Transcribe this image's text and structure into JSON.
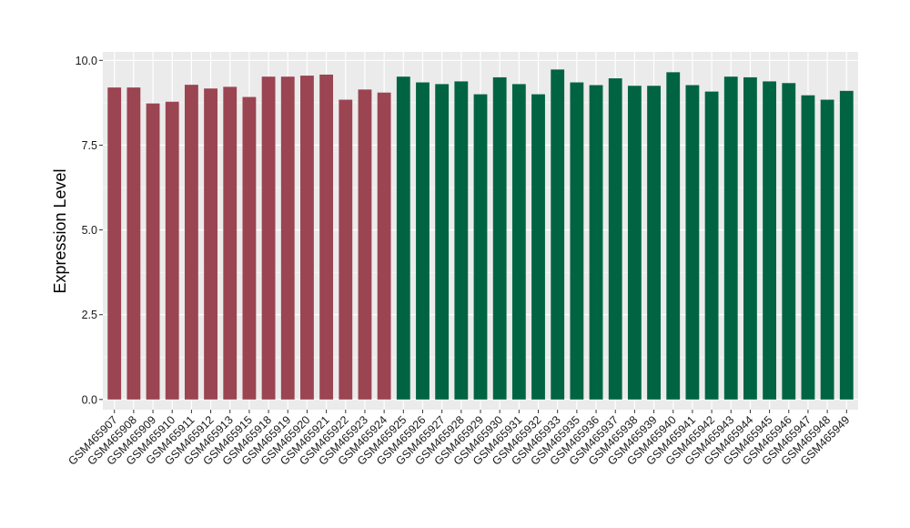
{
  "chart_data": {
    "type": "bar",
    "title": "",
    "xlabel": "",
    "ylabel": "Expression Level",
    "ylim": [
      -0.3,
      10.25
    ],
    "yticks": [
      0.0,
      2.5,
      5.0,
      7.5,
      10.0
    ],
    "ytick_labels": [
      "0.0",
      "2.5",
      "5.0",
      "7.5",
      "10.0"
    ],
    "grid": true,
    "legend": "none",
    "panel_background": "#ebebeb",
    "grid_color": "#ffffff",
    "categories": [
      "GSM465907",
      "GSM465908",
      "GSM465909",
      "GSM465910",
      "GSM465911",
      "GSM465912",
      "GSM465913",
      "GSM465915",
      "GSM465918",
      "GSM465919",
      "GSM465920",
      "GSM465921",
      "GSM465922",
      "GSM465923",
      "GSM465924",
      "GSM465925",
      "GSM465926",
      "GSM465927",
      "GSM465928",
      "GSM465929",
      "GSM465930",
      "GSM465931",
      "GSM465932",
      "GSM465933",
      "GSM465935",
      "GSM465936",
      "GSM465937",
      "GSM465938",
      "GSM465939",
      "GSM465940",
      "GSM465941",
      "GSM465942",
      "GSM465943",
      "GSM465944",
      "GSM465945",
      "GSM465946",
      "GSM465947",
      "GSM465948",
      "GSM465949"
    ],
    "values": [
      9.2,
      9.2,
      8.73,
      8.78,
      9.28,
      9.17,
      9.22,
      8.92,
      9.52,
      9.52,
      9.55,
      9.58,
      8.84,
      9.14,
      9.05,
      9.52,
      9.35,
      9.3,
      9.38,
      9.0,
      9.5,
      9.3,
      9.0,
      9.73,
      9.35,
      9.27,
      9.47,
      9.25,
      9.25,
      9.65,
      9.27,
      9.08,
      9.52,
      9.5,
      9.38,
      9.33,
      8.97,
      8.84,
      9.1
    ],
    "groups": [
      {
        "color": "#9b4452",
        "count": 15
      },
      {
        "color": "#006442",
        "count": 24
      }
    ]
  }
}
